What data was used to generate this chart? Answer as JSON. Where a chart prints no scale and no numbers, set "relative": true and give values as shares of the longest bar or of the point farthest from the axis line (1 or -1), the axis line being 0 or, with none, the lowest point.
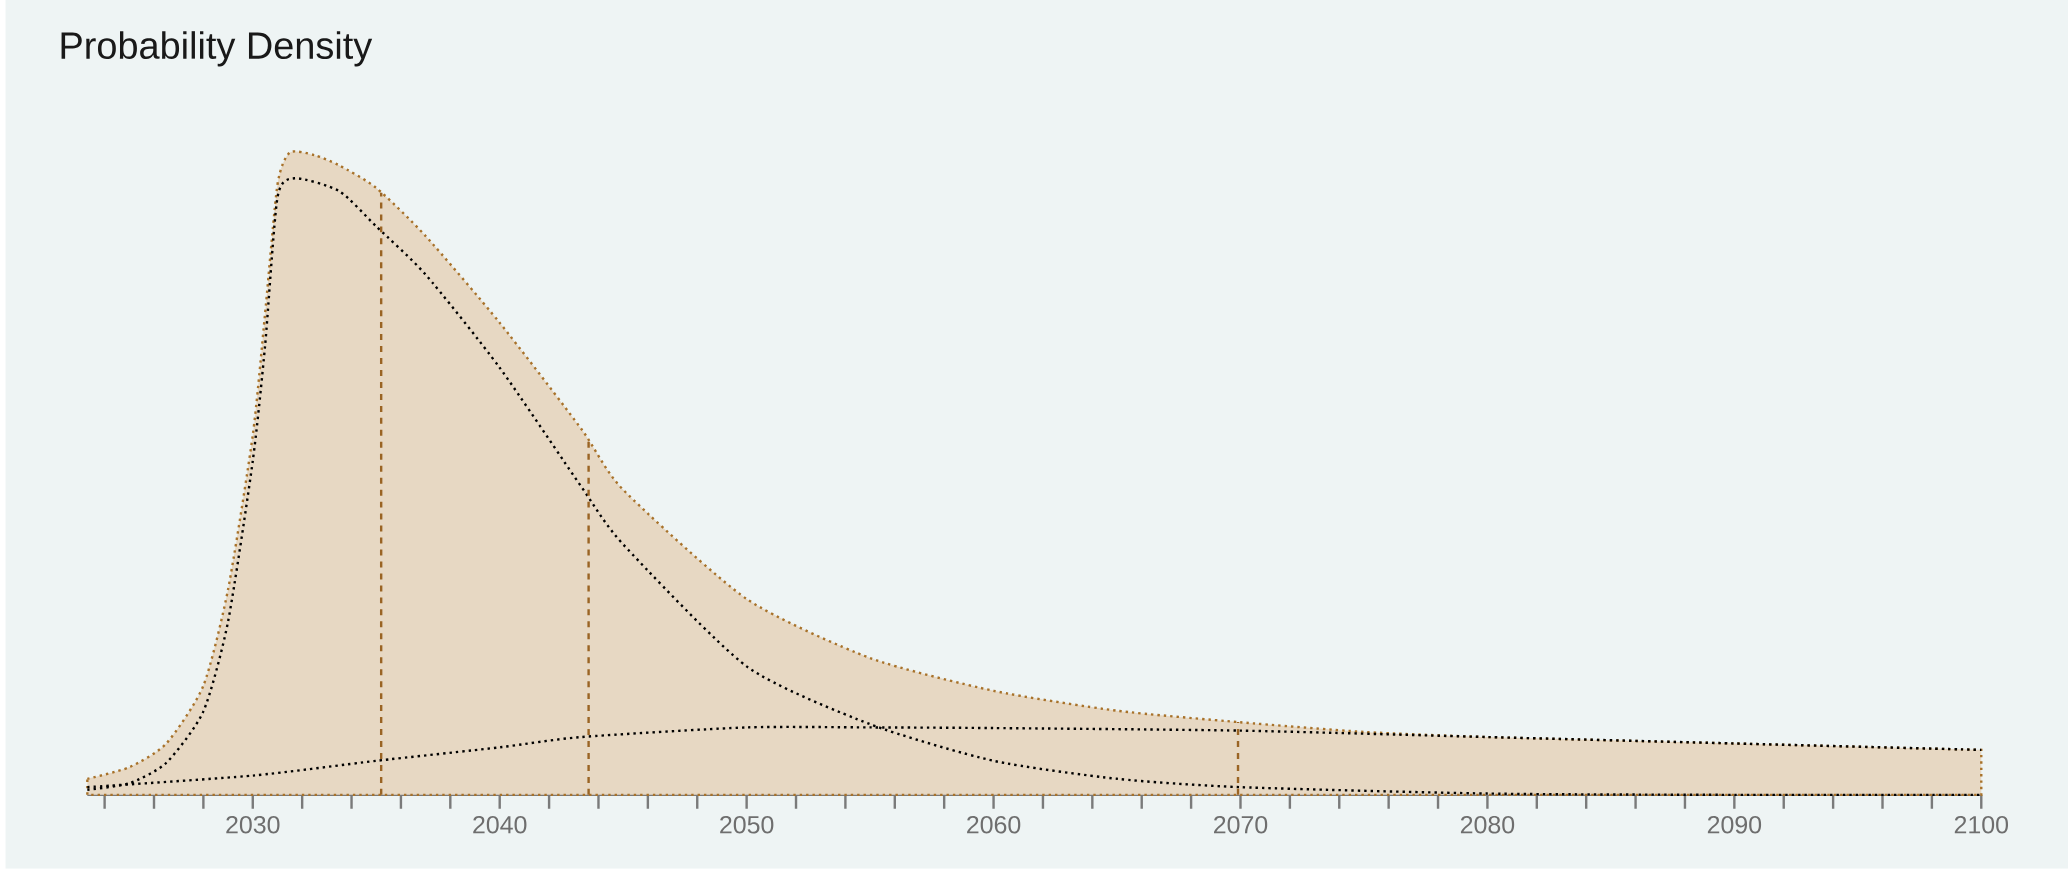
{
  "chart_data": {
    "type": "area",
    "title": "Probability Density",
    "relative": true,
    "xlim": [
      2023.3,
      2100
    ],
    "xticks": [
      {
        "value": 2024,
        "label": null
      },
      {
        "value": 2026,
        "label": null
      },
      {
        "value": 2028,
        "label": null
      },
      2030,
      {
        "value": 2032,
        "label": null
      },
      {
        "value": 2034,
        "label": null
      },
      {
        "value": 2036,
        "label": null
      },
      {
        "value": 2038,
        "label": null
      },
      2040,
      {
        "value": 2042,
        "label": null
      },
      {
        "value": 2044,
        "label": null
      },
      {
        "value": 2046,
        "label": null
      },
      {
        "value": 2048,
        "label": null
      },
      2050,
      {
        "value": 2052,
        "label": null
      },
      {
        "value": 2054,
        "label": null
      },
      {
        "value": 2056,
        "label": null
      },
      {
        "value": 2058,
        "label": null
      },
      2060,
      {
        "value": 2062,
        "label": null
      },
      {
        "value": 2064,
        "label": null
      },
      {
        "value": 2066,
        "label": null
      },
      {
        "value": 2068,
        "label": null
      },
      2070,
      {
        "value": 2072,
        "label": null
      },
      {
        "value": 2074,
        "label": null
      },
      {
        "value": 2076,
        "label": null
      },
      {
        "value": 2078,
        "label": null
      },
      2080,
      {
        "value": 2082,
        "label": null
      },
      {
        "value": 2084,
        "label": null
      },
      {
        "value": 2086,
        "label": null
      },
      {
        "value": 2088,
        "label": null
      },
      2090,
      {
        "value": 2092,
        "label": null
      },
      {
        "value": 2094,
        "label": null
      },
      {
        "value": 2096,
        "label": null
      },
      {
        "value": 2098,
        "label": null
      },
      2100
    ],
    "series": [
      {
        "color": "#a8722a",
        "line_style": "dotted",
        "x": [
          2023.3,
          2025,
          2026.5,
          2028,
          2029,
          2030,
          2030.5,
          2031,
          2031.5,
          2032.5,
          2033.5,
          2035,
          2037,
          2040,
          2043.3,
          2045,
          2050,
          2055,
          2060,
          2065,
          2070,
          2075,
          2080,
          2090,
          2100
        ],
        "values": [
          0.025,
          0.043,
          0.08,
          0.17,
          0.32,
          0.56,
          0.75,
          0.95,
          1.0,
          0.996,
          0.98,
          0.945,
          0.87,
          0.735,
          0.57,
          0.475,
          0.305,
          0.213,
          0.162,
          0.131,
          0.113,
          0.098,
          0.09,
          0.08,
          0.07
        ]
      },
      {
        "type": "line",
        "color": "#000000",
        "line_style": "dotted",
        "x": [
          2023.3,
          2025,
          2026.5,
          2028,
          2029,
          2030,
          2030.5,
          2031,
          2031.7,
          2033.5,
          2035,
          2037,
          2040,
          2043.3,
          2045,
          2050,
          2055,
          2060,
          2065,
          2070,
          2080,
          2090,
          2100
        ],
        "values": [
          0.008,
          0.018,
          0.05,
          0.13,
          0.27,
          0.52,
          0.7,
          0.93,
          0.96,
          0.94,
          0.885,
          0.81,
          0.665,
          0.48,
          0.39,
          0.2,
          0.11,
          0.053,
          0.025,
          0.012,
          0.002,
          0.0,
          0.0
        ]
      },
      {
        "type": "line",
        "color": "#000000",
        "line_style": "dotted",
        "x": [
          2023.3,
          2030,
          2035,
          2040,
          2043.3,
          2050,
          2055,
          2060,
          2070,
          2080,
          2090,
          2100
        ],
        "values": [
          0.012,
          0.03,
          0.053,
          0.074,
          0.09,
          0.105,
          0.105,
          0.104,
          0.1,
          0.09,
          0.08,
          0.07
        ]
      }
    ],
    "ref_lines": [
      {
        "axis": "x",
        "value": 2035.2,
        "color": "#9a6424",
        "line_style": "dashed"
      },
      {
        "axis": "x",
        "value": 2043.6,
        "color": "#9a6424",
        "line_style": "dashed"
      },
      {
        "axis": "x",
        "value": 2069.9,
        "color": "#9a6424",
        "line_style": "dashed"
      }
    ]
  }
}
